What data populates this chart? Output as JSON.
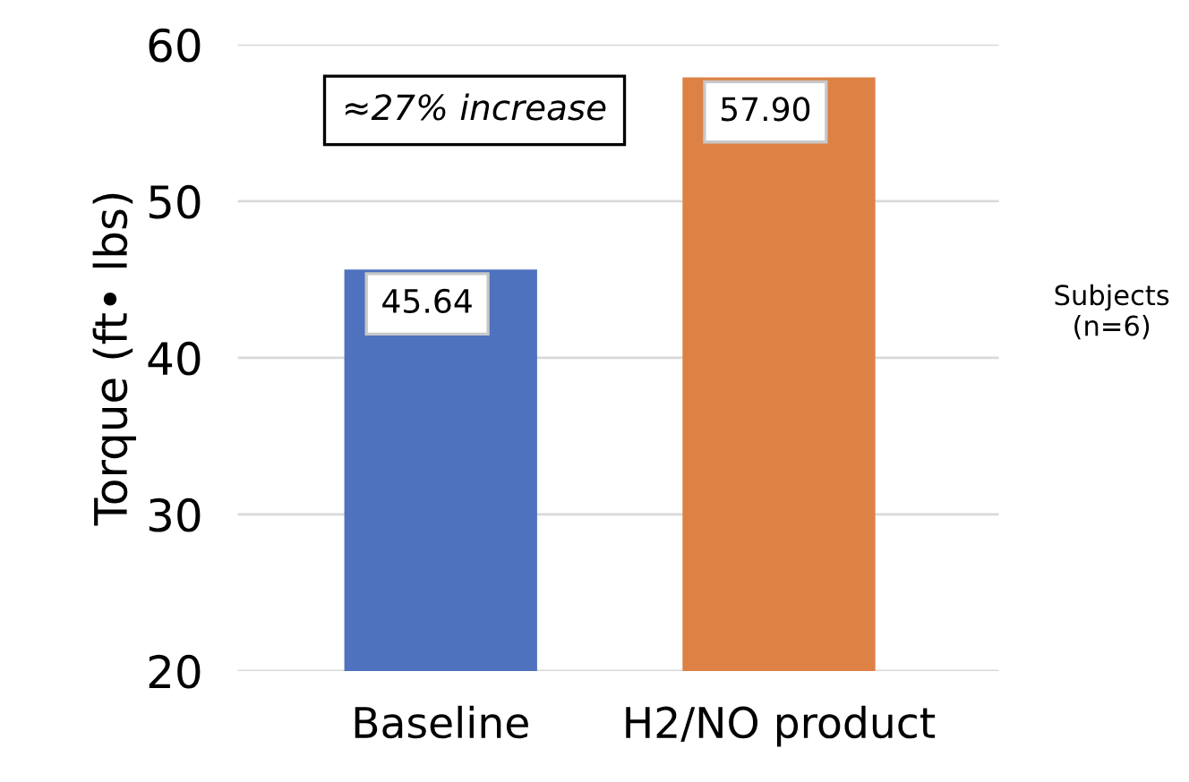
{
  "chart_data": {
    "type": "bar",
    "ylabel": "Torque (ft• lbs)",
    "categories": [
      "Baseline",
      "H2/NO product"
    ],
    "values": [
      45.64,
      57.9
    ],
    "colors": [
      "#4f72be",
      "#dd8145"
    ],
    "value_labels": [
      "45.64",
      "57.90"
    ],
    "ylim": [
      20,
      60
    ],
    "yticks": [
      20,
      30,
      40,
      50,
      60
    ],
    "grid": "y",
    "annotations": [
      "≈27% increase",
      "Subjects\n(n=6)"
    ]
  }
}
